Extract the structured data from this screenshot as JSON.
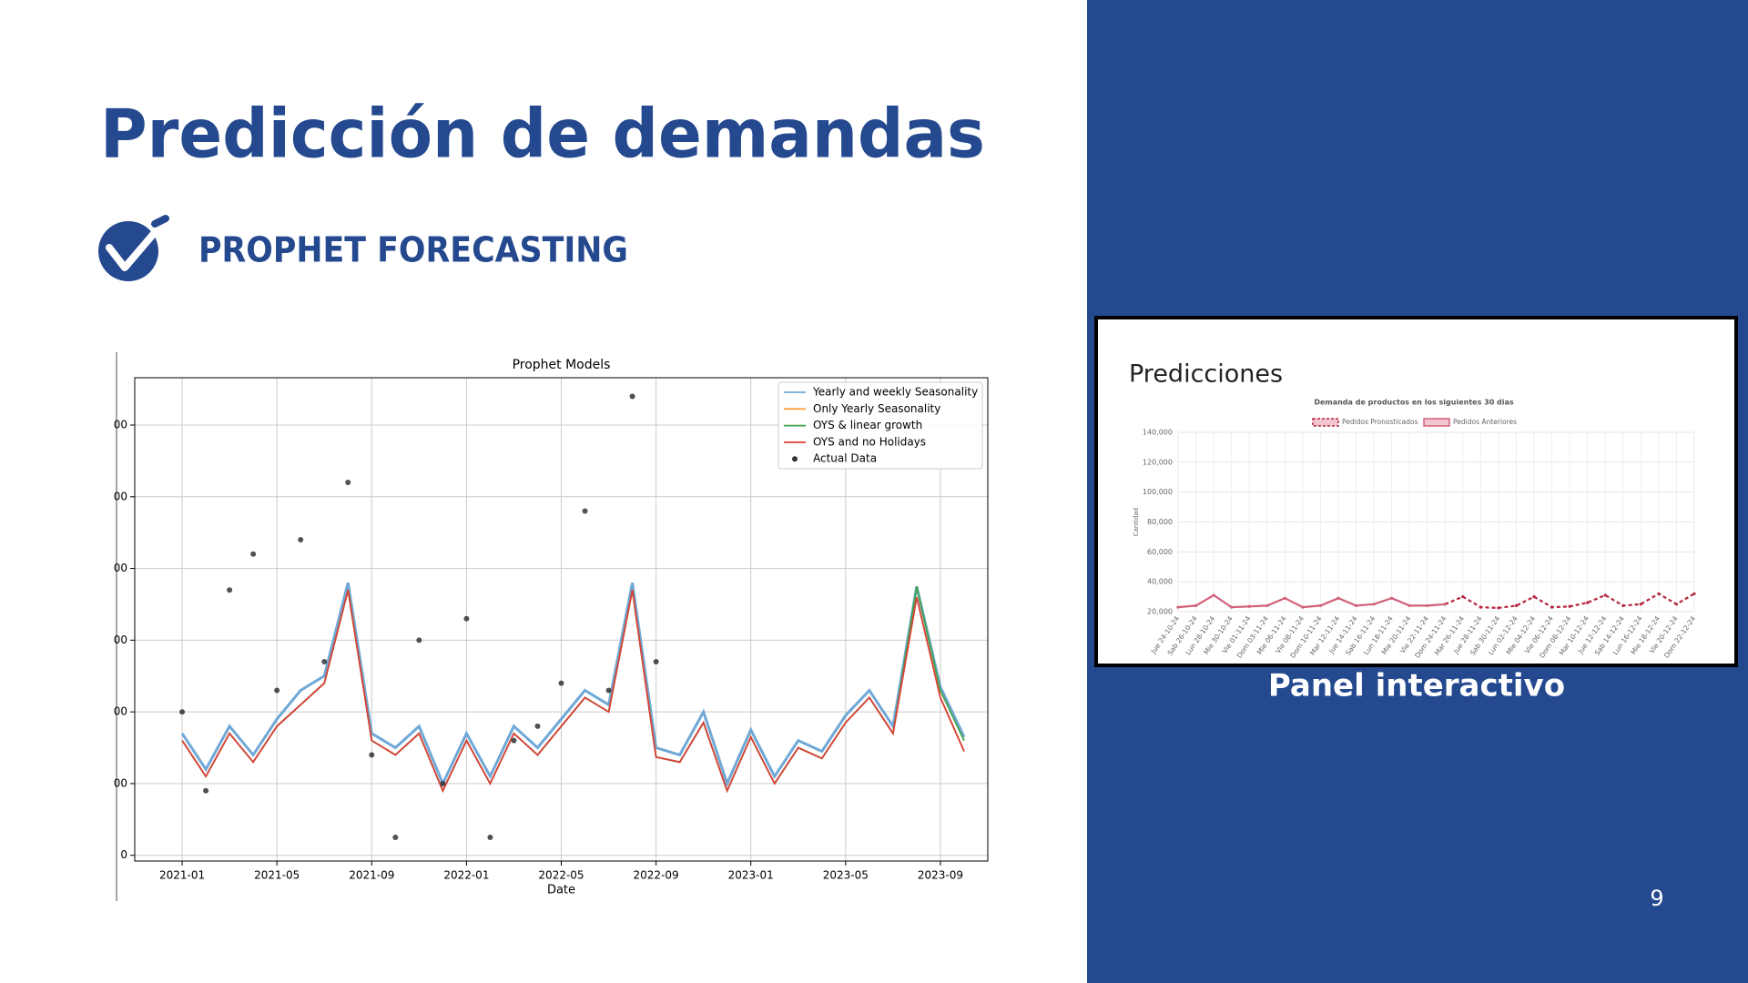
{
  "slide": {
    "title": "Predicción de demandas",
    "subtitle": "PROPHET FORECASTING",
    "panel_heading": "Predicciones",
    "panel_caption": "Panel interactivo",
    "page_number": 9
  },
  "chart_data": [
    {
      "type": "line",
      "title": "Prophet Models",
      "x_label": "Date",
      "x": [
        "2021-01",
        "2021-02",
        "2021-03",
        "2021-04",
        "2021-05",
        "2021-06",
        "2021-07",
        "2021-08",
        "2021-09",
        "2021-10",
        "2021-11",
        "2021-12",
        "2022-01",
        "2022-02",
        "2022-03",
        "2022-04",
        "2022-05",
        "2022-06",
        "2022-07",
        "2022-08",
        "2022-09",
        "2022-10",
        "2022-11",
        "2022-12",
        "2023-01",
        "2023-02",
        "2023-03",
        "2023-04",
        "2023-05",
        "2023-06",
        "2023-07",
        "2023-08",
        "2023-09",
        "2023-10"
      ],
      "series": [
        {
          "name": "Yearly and weekly Seasonality",
          "color": "#6fa8d6",
          "values": [
            170,
            120,
            180,
            140,
            190,
            230,
            250,
            380,
            170,
            150,
            180,
            100,
            170,
            110,
            180,
            150,
            190,
            230,
            210,
            380,
            150,
            140,
            200,
            100,
            175,
            110,
            160,
            145,
            195,
            230,
            180,
            375,
            235,
            165
          ]
        },
        {
          "name": "Only Yearly Seasonality",
          "color": "#ff9f40",
          "values": [
            160,
            110,
            170,
            130,
            180,
            210,
            240,
            370,
            160,
            140,
            170,
            90,
            160,
            100,
            170,
            140,
            180,
            220,
            200,
            370,
            137,
            130,
            185,
            90,
            165,
            100,
            150,
            135,
            185,
            220,
            170,
            360,
            220,
            145
          ]
        },
        {
          "name": "OYS & linear growth",
          "color": "#3fa34d",
          "values": [
            160,
            110,
            170,
            130,
            180,
            210,
            240,
            370,
            160,
            140,
            170,
            90,
            160,
            100,
            170,
            140,
            180,
            220,
            200,
            370,
            137,
            130,
            185,
            90,
            165,
            100,
            150,
            135,
            185,
            220,
            170,
            375,
            230,
            160
          ]
        },
        {
          "name": "OYS and no Holidays",
          "color": "#d9413a",
          "values": [
            160,
            110,
            170,
            130,
            180,
            210,
            240,
            370,
            160,
            140,
            170,
            90,
            160,
            100,
            170,
            140,
            180,
            220,
            200,
            370,
            137,
            130,
            185,
            90,
            165,
            100,
            150,
            135,
            185,
            220,
            170,
            360,
            220,
            145
          ]
        },
        {
          "name": "Actual Data",
          "color": "#333333",
          "type": "scatter",
          "x": [
            "2021-01",
            "2021-02",
            "2021-03",
            "2021-04",
            "2021-05",
            "2021-06",
            "2021-07",
            "2021-08",
            "2021-09",
            "2021-10",
            "2021-11",
            "2021-12",
            "2022-01",
            "2022-02",
            "2022-03",
            "2022-04",
            "2022-05",
            "2022-06",
            "2022-07",
            "2022-08",
            "2022-09"
          ],
          "values": [
            200,
            90,
            370,
            420,
            230,
            440,
            270,
            520,
            140,
            25,
            300,
            100,
            330,
            25,
            160,
            180,
            240,
            480,
            230,
            640,
            270
          ]
        }
      ],
      "xlim": [
        "2020-11",
        "2023-11"
      ],
      "xticks": [
        "2021-01",
        "2021-05",
        "2021-09",
        "2022-01",
        "2022-05",
        "2022-09",
        "2023-01",
        "2023-05",
        "2023-09"
      ],
      "ylim": [
        -8,
        666
      ],
      "yticks": [
        0,
        {
          "value": 100,
          "label": "00"
        },
        {
          "value": 200,
          "label": "00"
        },
        {
          "value": 300,
          "label": "00"
        },
        {
          "value": 400,
          "label": "00"
        },
        {
          "value": 500,
          "label": "00"
        },
        {
          "value": 600,
          "label": "00"
        }
      ],
      "grid": true,
      "legend": "upper right"
    },
    {
      "type": "line",
      "title": "Demanda de productos en los siguientes 30 dias",
      "y_label": "Cantidad",
      "categories": [
        "Jue 24-10-24",
        "Sab 26-10-24",
        "Lun 28-10-24",
        "Mie 30-10-24",
        "Vie 01-11-24",
        "Dom 03-11-24",
        "Mie 06-11-24",
        "Vie 08-11-24",
        "Dom 10-11-24",
        "Mar 12-11-24",
        "Jue 14-11-24",
        "Sab 16-11-24",
        "Lun 18-11-24",
        "Mie 20-11-24",
        "Vie 22-11-24",
        "Dom 24-11-24",
        "Mar 26-11-24",
        "Jue 28-11-24",
        "Sab 30-11-24",
        "Lun 02-12-24",
        "Mie 04-12-24",
        "Vie 06-12-24",
        "Dom 08-12-24",
        "Mar 10-12-24",
        "Jue 12-12-24",
        "Sab 14-12-24",
        "Lun 16-12-24",
        "Mie 18-12-24",
        "Vie 20-12-24",
        "Dom 22-12-24"
      ],
      "series": [
        {
          "name": "Pedidos Pronosticados",
          "color": "#b5253e",
          "dash": true,
          "values": [
            null,
            null,
            null,
            null,
            null,
            null,
            null,
            null,
            null,
            null,
            null,
            null,
            null,
            null,
            null,
            25000,
            30000,
            23000,
            22500,
            24000,
            30000,
            23000,
            23500,
            26000,
            31000,
            24000,
            25000,
            32000,
            25000,
            32000
          ]
        },
        {
          "name": "Pedidos Anteriores",
          "color": "#d0607a",
          "dash": false,
          "values": [
            23000,
            24000,
            31000,
            23000,
            23500,
            24000,
            29000,
            23000,
            24000,
            29000,
            24000,
            25000,
            29000,
            24000,
            24000,
            25000,
            null,
            null,
            null,
            null,
            null,
            null,
            null,
            null,
            null,
            null,
            null,
            null,
            null,
            null
          ]
        }
      ],
      "ylim": [
        20000,
        140000
      ],
      "yticks": [
        {
          "value": 20000,
          "label": "20,000"
        },
        {
          "value": 40000,
          "label": "40,000"
        },
        {
          "value": 60000,
          "label": "60,000"
        },
        {
          "value": 80000,
          "label": "80,000"
        },
        {
          "value": 100000,
          "label": "100,000"
        },
        {
          "value": 120000,
          "label": "120,000"
        },
        {
          "value": 140000,
          "label": "140,000"
        }
      ],
      "grid": true,
      "legend": "top"
    }
  ]
}
